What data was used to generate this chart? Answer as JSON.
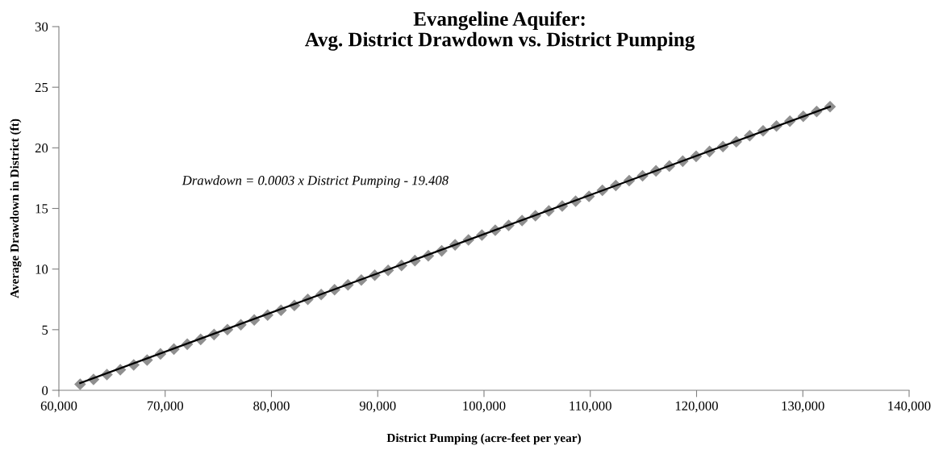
{
  "chart_data": {
    "type": "scatter",
    "title": "Evangeline Aquifer:\nAvg. District Drawdown vs. District Pumping",
    "xlabel": "District Pumping (acre-feet per year)",
    "ylabel": "Average Drawdown in District (ft)",
    "annotations": [
      "Drawdown = 0.0003 x District Pumping - 19.408"
    ],
    "x": [
      62000,
      63260,
      64520,
      65780,
      67040,
      68300,
      69560,
      70820,
      72080,
      73340,
      74600,
      75860,
      77120,
      78380,
      79640,
      80900,
      82160,
      83420,
      84680,
      85940,
      87200,
      88460,
      89720,
      90980,
      92240,
      93500,
      94760,
      96020,
      97280,
      98540,
      99800,
      101060,
      102320,
      103580,
      104840,
      106100,
      107360,
      108620,
      109880,
      111140,
      112400,
      113660,
      114920,
      116180,
      117440,
      118700,
      119960,
      121220,
      122480,
      123740,
      125000,
      126260,
      127520,
      128780,
      130040,
      131300,
      132560
    ],
    "series": [
      {
        "color": "#8f8f8f",
        "marker": "diamond",
        "values": [
          0.5,
          0.9,
          1.3,
          1.7,
          2.1,
          2.5,
          3.0,
          3.4,
          3.8,
          4.2,
          4.6,
          5.0,
          5.4,
          5.8,
          6.2,
          6.6,
          7.0,
          7.5,
          7.9,
          8.3,
          8.7,
          9.1,
          9.5,
          9.9,
          10.3,
          10.7,
          11.1,
          11.5,
          12.0,
          12.4,
          12.8,
          13.2,
          13.6,
          14.0,
          14.4,
          14.8,
          15.2,
          15.6,
          16.0,
          16.5,
          16.9,
          17.3,
          17.7,
          18.1,
          18.5,
          18.9,
          19.3,
          19.7,
          20.1,
          20.5,
          21.0,
          21.4,
          21.8,
          22.2,
          22.6,
          23.0,
          23.4
        ]
      },
      {
        "type": "line",
        "color": "#000000",
        "marker": "none",
        "x": [
          62000,
          132560
        ],
        "values": [
          0.6,
          23.4
        ]
      }
    ],
    "xlim": [
      60000,
      140000
    ],
    "xticks": [
      {
        "value": 60000,
        "label": "60,000"
      },
      {
        "value": 70000,
        "label": "70,000"
      },
      {
        "value": 80000,
        "label": "80,000"
      },
      {
        "value": 90000,
        "label": "90,000"
      },
      {
        "value": 100000,
        "label": "100,000"
      },
      {
        "value": 110000,
        "label": "110,000"
      },
      {
        "value": 120000,
        "label": "120,000"
      },
      {
        "value": 130000,
        "label": "130,000"
      },
      {
        "value": 140000,
        "label": "140,000"
      }
    ],
    "ylim": [
      0,
      30
    ],
    "yticks": [
      0,
      5,
      10,
      15,
      20,
      25,
      30
    ],
    "grid": false,
    "legend": false
  }
}
